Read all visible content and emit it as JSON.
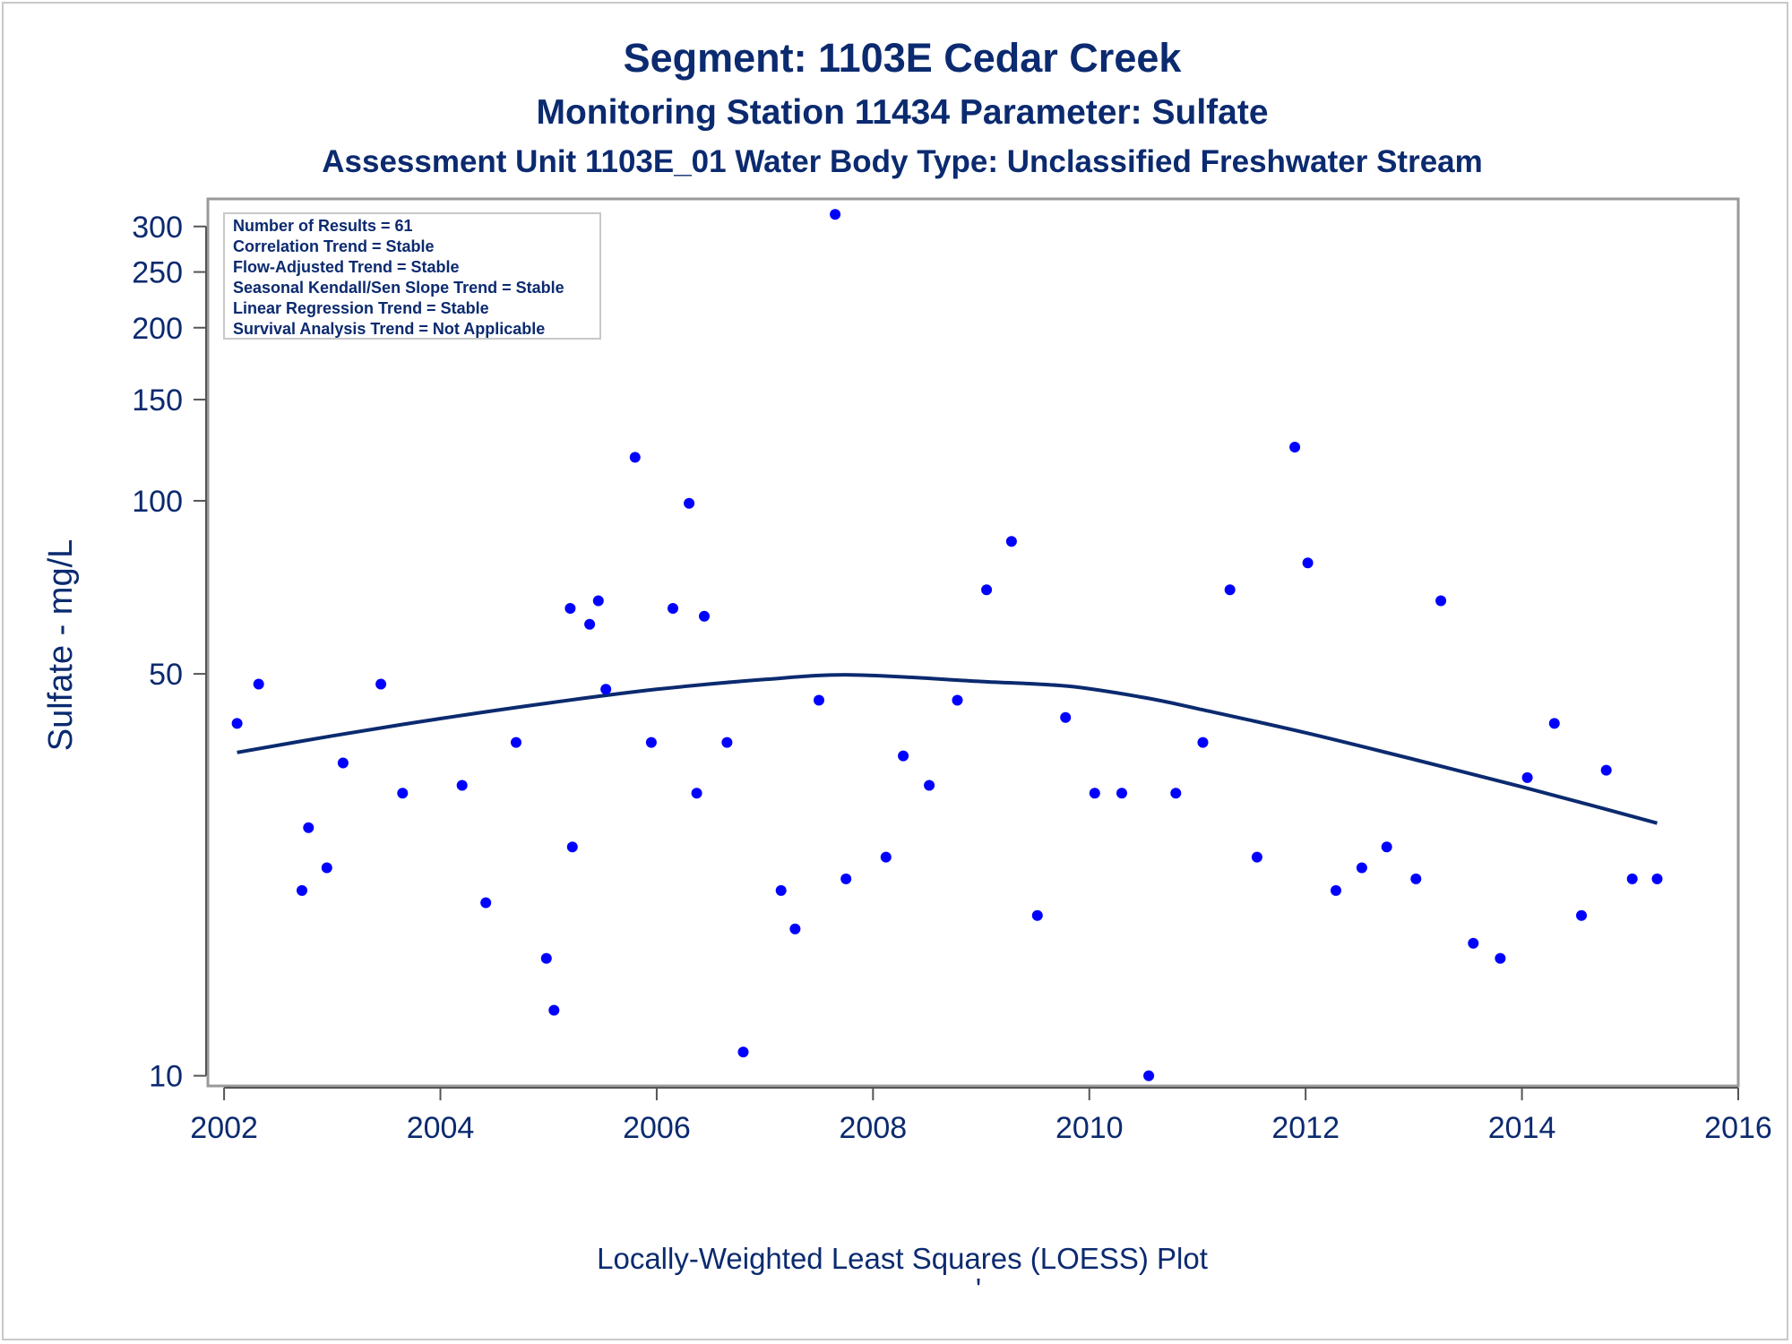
{
  "chart_data": {
    "type": "scatter",
    "title": "Segment: 1103E  Cedar Creek",
    "subtitle": "Monitoring Station 11434 Parameter: Sulfate",
    "subtitle2": "Assessment Unit 1103E_01   Water Body Type: Unclassified Freshwater Stream",
    "ylabel": "Sulfate - mg/L",
    "footnote": "Locally-Weighted Least Squares (LOESS) Plot",
    "footnote_mark": "'",
    "y_scale": "log",
    "xlim": [
      2001.85,
      2016.0
    ],
    "ylim": [
      9.6,
      335
    ],
    "x_ticks": [
      {
        "value": 2002,
        "label": "2002"
      },
      {
        "value": 2004,
        "label": "2004"
      },
      {
        "value": 2006,
        "label": "2006"
      },
      {
        "value": 2008,
        "label": "2008"
      },
      {
        "value": 2010,
        "label": "2010"
      },
      {
        "value": 2012,
        "label": "2012"
      },
      {
        "value": 2014,
        "label": "2014"
      },
      {
        "value": 2016,
        "label": "2016"
      }
    ],
    "y_ticks": [
      {
        "value": 10,
        "label": "10"
      },
      {
        "value": 50,
        "label": "50"
      },
      {
        "value": 100,
        "label": "100"
      },
      {
        "value": 150,
        "label": "150"
      },
      {
        "value": 200,
        "label": "200"
      },
      {
        "value": 250,
        "label": "250"
      },
      {
        "value": 300,
        "label": "300"
      }
    ],
    "grid": false,
    "legend_position": "top-left",
    "stats": [
      "Number of Results = 61",
      "Correlation Trend = Stable",
      "Flow-Adjusted Trend = Stable",
      "Seasonal Kendall/Sen Slope Trend = Stable",
      "Linear Regression Trend = Stable",
      "Survival Analysis Trend = Not Applicable"
    ],
    "colors": {
      "points": "#0000ff",
      "loess": "#0b2a6f",
      "text": "#0b2a6f",
      "axis": "#999999"
    },
    "points": [
      {
        "x": 2002.12,
        "y": 41
      },
      {
        "x": 2002.32,
        "y": 48
      },
      {
        "x": 2002.72,
        "y": 21
      },
      {
        "x": 2002.78,
        "y": 27
      },
      {
        "x": 2002.95,
        "y": 23
      },
      {
        "x": 2003.1,
        "y": 35
      },
      {
        "x": 2003.45,
        "y": 48
      },
      {
        "x": 2003.65,
        "y": 31
      },
      {
        "x": 2004.2,
        "y": 32
      },
      {
        "x": 2004.42,
        "y": 20
      },
      {
        "x": 2004.7,
        "y": 38
      },
      {
        "x": 2004.98,
        "y": 16
      },
      {
        "x": 2005.05,
        "y": 13
      },
      {
        "x": 2005.2,
        "y": 65
      },
      {
        "x": 2005.22,
        "y": 25
      },
      {
        "x": 2005.38,
        "y": 61
      },
      {
        "x": 2005.46,
        "y": 67
      },
      {
        "x": 2005.53,
        "y": 47
      },
      {
        "x": 2005.8,
        "y": 119
      },
      {
        "x": 2005.95,
        "y": 38
      },
      {
        "x": 2006.15,
        "y": 65
      },
      {
        "x": 2006.3,
        "y": 99
      },
      {
        "x": 2006.37,
        "y": 31
      },
      {
        "x": 2006.44,
        "y": 63
      },
      {
        "x": 2006.65,
        "y": 38
      },
      {
        "x": 2006.8,
        "y": 11
      },
      {
        "x": 2007.15,
        "y": 21
      },
      {
        "x": 2007.28,
        "y": 18
      },
      {
        "x": 2007.5,
        "y": 45
      },
      {
        "x": 2007.65,
        "y": 315
      },
      {
        "x": 2007.75,
        "y": 22
      },
      {
        "x": 2008.12,
        "y": 24
      },
      {
        "x": 2008.28,
        "y": 36
      },
      {
        "x": 2008.52,
        "y": 32
      },
      {
        "x": 2008.78,
        "y": 45
      },
      {
        "x": 2009.05,
        "y": 70
      },
      {
        "x": 2009.28,
        "y": 85
      },
      {
        "x": 2009.52,
        "y": 19
      },
      {
        "x": 2009.78,
        "y": 42
      },
      {
        "x": 2010.05,
        "y": 31
      },
      {
        "x": 2010.3,
        "y": 31
      },
      {
        "x": 2010.55,
        "y": 10
      },
      {
        "x": 2010.8,
        "y": 31
      },
      {
        "x": 2011.05,
        "y": 38
      },
      {
        "x": 2011.3,
        "y": 70
      },
      {
        "x": 2011.55,
        "y": 24
      },
      {
        "x": 2011.9,
        "y": 124
      },
      {
        "x": 2012.02,
        "y": 78
      },
      {
        "x": 2012.28,
        "y": 21
      },
      {
        "x": 2012.52,
        "y": 23
      },
      {
        "x": 2012.75,
        "y": 25
      },
      {
        "x": 2013.02,
        "y": 22
      },
      {
        "x": 2013.25,
        "y": 67
      },
      {
        "x": 2013.55,
        "y": 17
      },
      {
        "x": 2013.8,
        "y": 16
      },
      {
        "x": 2014.05,
        "y": 33
      },
      {
        "x": 2014.3,
        "y": 41
      },
      {
        "x": 2014.55,
        "y": 19
      },
      {
        "x": 2014.78,
        "y": 34
      },
      {
        "x": 2015.02,
        "y": 22
      },
      {
        "x": 2015.25,
        "y": 22
      }
    ],
    "loess": [
      {
        "x": 2002.12,
        "y": 36.5
      },
      {
        "x": 2003.0,
        "y": 39.0
      },
      {
        "x": 2004.0,
        "y": 41.8
      },
      {
        "x": 2005.0,
        "y": 44.5
      },
      {
        "x": 2006.0,
        "y": 47.0
      },
      {
        "x": 2007.0,
        "y": 48.9
      },
      {
        "x": 2007.8,
        "y": 49.8
      },
      {
        "x": 2009.0,
        "y": 48.5
      },
      {
        "x": 2009.8,
        "y": 47.6
      },
      {
        "x": 2010.5,
        "y": 45.5
      },
      {
        "x": 2011.0,
        "y": 43.5
      },
      {
        "x": 2012.0,
        "y": 39.5
      },
      {
        "x": 2013.0,
        "y": 35.5
      },
      {
        "x": 2014.0,
        "y": 31.8
      },
      {
        "x": 2014.8,
        "y": 29.0
      },
      {
        "x": 2015.25,
        "y": 27.5
      }
    ]
  }
}
